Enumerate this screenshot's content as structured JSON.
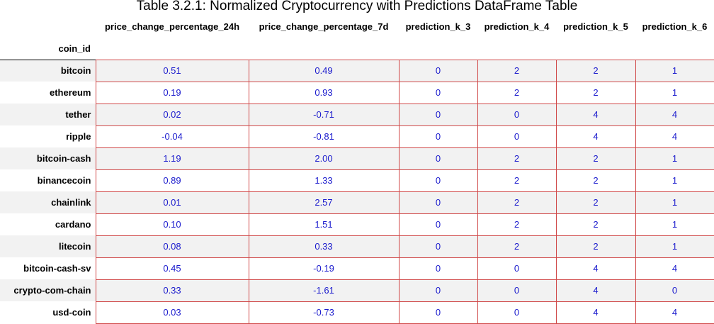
{
  "caption": "Table 3.2.1: Normalized Cryptocurrency with Predictions DataFrame Table",
  "index_name": "coin_id",
  "columns": [
    "price_change_percentage_24h",
    "price_change_percentage_7d",
    "prediction_k_3",
    "prediction_k_4",
    "prediction_k_5",
    "prediction_k_6"
  ],
  "rows": [
    {
      "index": "bitcoin",
      "cells": [
        "0.51",
        "0.49",
        "0",
        "2",
        "2",
        "1"
      ]
    },
    {
      "index": "ethereum",
      "cells": [
        "0.19",
        "0.93",
        "0",
        "2",
        "2",
        "1"
      ]
    },
    {
      "index": "tether",
      "cells": [
        "0.02",
        "-0.71",
        "0",
        "0",
        "4",
        "4"
      ]
    },
    {
      "index": "ripple",
      "cells": [
        "-0.04",
        "-0.81",
        "0",
        "0",
        "4",
        "4"
      ]
    },
    {
      "index": "bitcoin-cash",
      "cells": [
        "1.19",
        "2.00",
        "0",
        "2",
        "2",
        "1"
      ]
    },
    {
      "index": "binancecoin",
      "cells": [
        "0.89",
        "1.33",
        "0",
        "2",
        "2",
        "1"
      ]
    },
    {
      "index": "chainlink",
      "cells": [
        "0.01",
        "2.57",
        "0",
        "2",
        "2",
        "1"
      ]
    },
    {
      "index": "cardano",
      "cells": [
        "0.10",
        "1.51",
        "0",
        "2",
        "2",
        "1"
      ]
    },
    {
      "index": "litecoin",
      "cells": [
        "0.08",
        "0.33",
        "0",
        "2",
        "2",
        "1"
      ]
    },
    {
      "index": "bitcoin-cash-sv",
      "cells": [
        "0.45",
        "-0.19",
        "0",
        "0",
        "4",
        "4"
      ]
    },
    {
      "index": "crypto-com-chain",
      "cells": [
        "0.33",
        "-1.61",
        "0",
        "0",
        "4",
        "0"
      ]
    },
    {
      "index": "usd-coin",
      "cells": [
        "0.03",
        "-0.73",
        "0",
        "0",
        "4",
        "4"
      ]
    }
  ]
}
